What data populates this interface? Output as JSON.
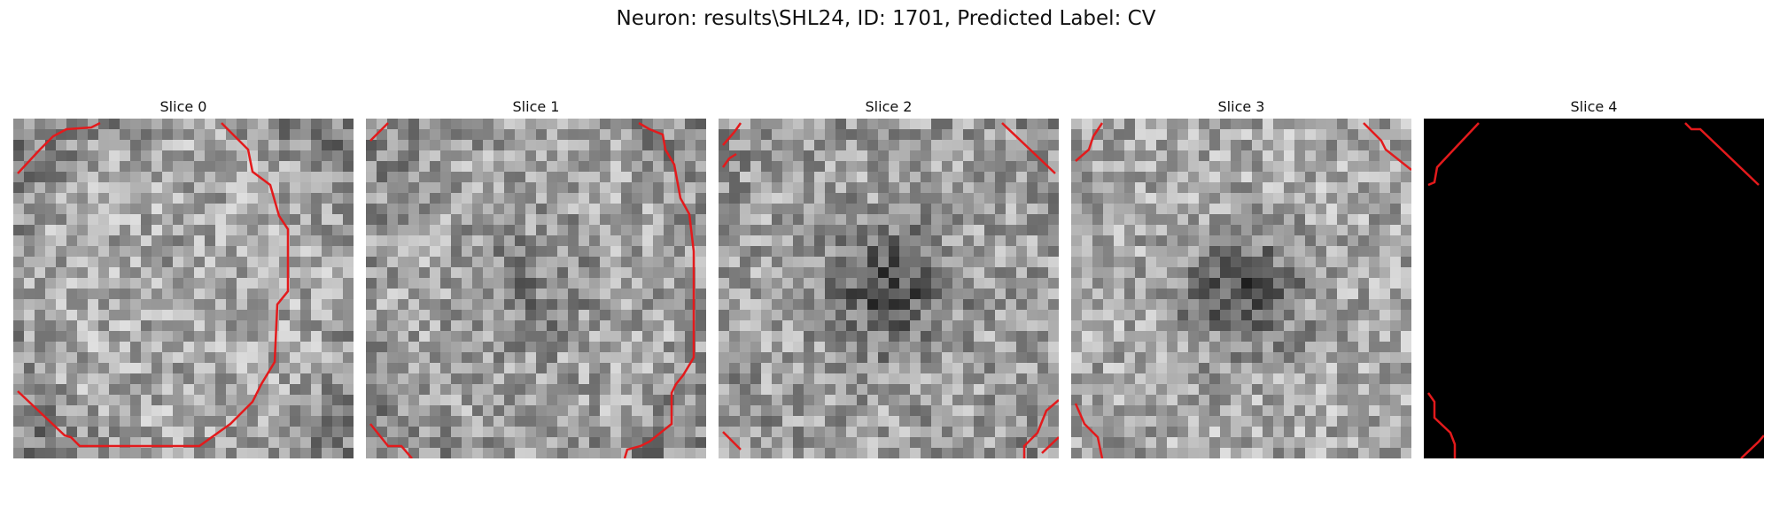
{
  "figure": {
    "title": "Neuron: results\\SHL24, ID: 1701, Predicted Label: CV"
  },
  "colors": {
    "contour": "#e31a1c",
    "background": "#ffffff",
    "blank_slice": "#000000"
  },
  "panels": [
    {
      "title": "Slice 0",
      "center_gray": 170,
      "dark_blob": 0.05,
      "rim": 0.35,
      "blank": false
    },
    {
      "title": "Slice 1",
      "center_gray": 165,
      "dark_blob": 0.25,
      "rim": 0.25,
      "blank": false
    },
    {
      "title": "Slice 2",
      "center_gray": 160,
      "dark_blob": 0.55,
      "rim": 0.1,
      "blank": false
    },
    {
      "title": "Slice 3",
      "center_gray": 170,
      "dark_blob": 0.6,
      "rim": 0.05,
      "blank": false
    },
    {
      "title": "Slice 4",
      "center_gray": 0,
      "dark_blob": 0,
      "rim": 0,
      "blank": true
    }
  ]
}
